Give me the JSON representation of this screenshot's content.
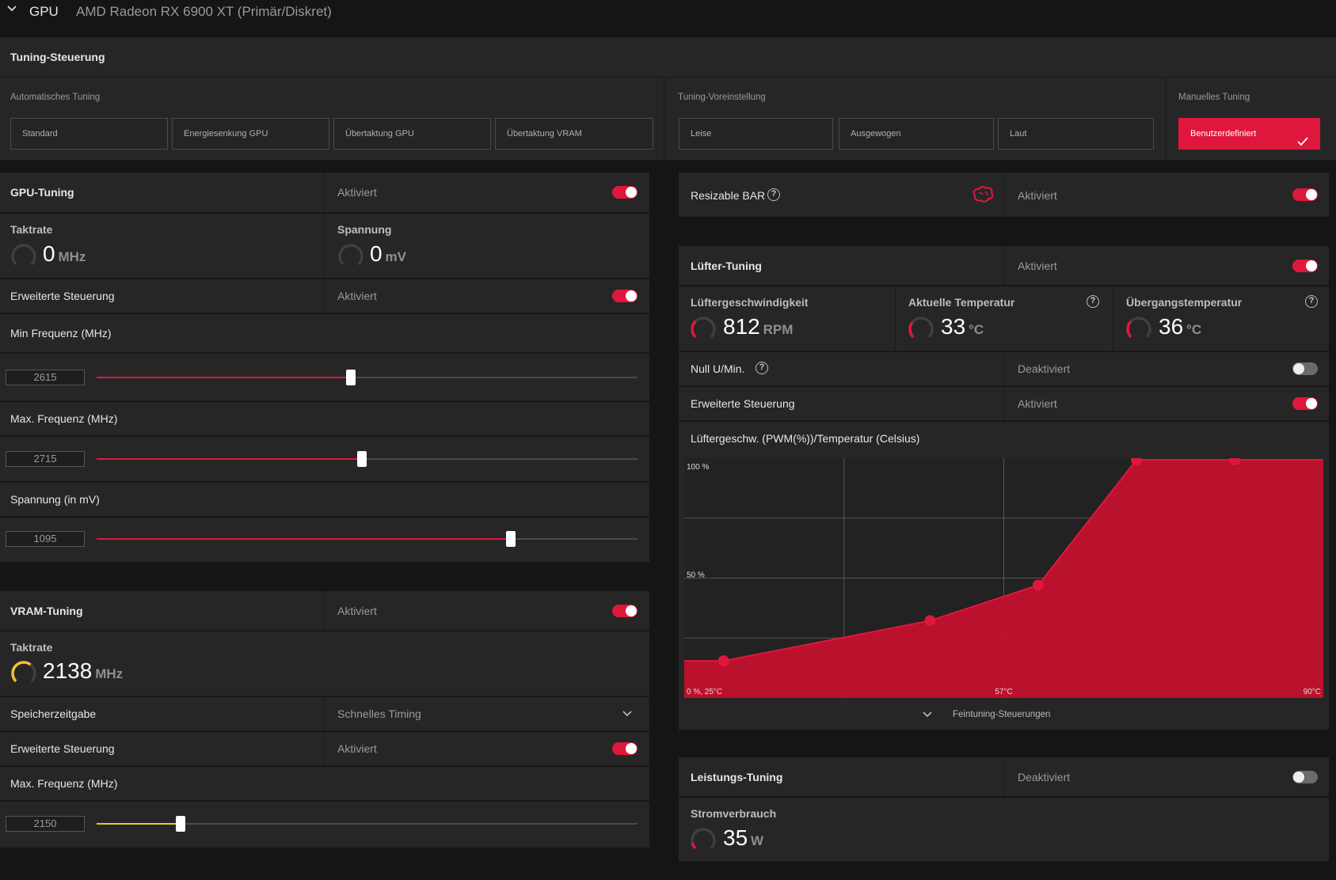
{
  "header": {
    "section": "GPU",
    "device": "AMD Radeon RX 6900 XT (Primär/Diskret)"
  },
  "tuning_control": {
    "title": "Tuning-Steuerung",
    "auto_label": "Automatisches Tuning",
    "auto_buttons": [
      "Standard",
      "Energiesenkung GPU",
      "Übertaktung GPU",
      "Übertaktung VRAM"
    ],
    "preset_label": "Tuning-Voreinstellung",
    "preset_buttons": [
      "Leise",
      "Ausgewogen",
      "Laut"
    ],
    "manual_label": "Manuelles Tuning",
    "manual_button": "Benutzerdefiniert"
  },
  "gpu_tuning": {
    "title": "GPU-Tuning",
    "status": "Aktiviert",
    "enabled": true,
    "clock_label": "Taktrate",
    "clock_value": "0",
    "clock_unit": "MHz",
    "voltage_label": "Spannung",
    "voltage_value": "0",
    "voltage_unit": "mV",
    "advanced_label": "Erweiterte Steuerung",
    "advanced_status": "Aktiviert",
    "min_freq_label": "Min Frequenz (MHz)",
    "min_freq_value": "2615",
    "min_freq_fraction": 0.47,
    "max_freq_label": "Max. Frequenz (MHz)",
    "max_freq_value": "2715",
    "max_freq_fraction": 0.49,
    "voltage_slider_label": "Spannung (in mV)",
    "voltage_slider_value": "1095",
    "voltage_slider_fraction": 0.766
  },
  "vram_tuning": {
    "title": "VRAM-Tuning",
    "status": "Aktiviert",
    "clock_label": "Taktrate",
    "clock_value": "2138",
    "clock_unit": "MHz",
    "timing_label": "Speicherzeitgabe",
    "timing_value": "Schnelles Timing",
    "advanced_label": "Erweiterte Steuerung",
    "advanced_status": "Aktiviert",
    "max_freq_label": "Max. Frequenz (MHz)",
    "max_freq_value": "2150",
    "max_freq_fraction": 0.155
  },
  "resizable_bar": {
    "label": "Resizable BAR",
    "status": "Aktiviert"
  },
  "fan_tuning": {
    "title": "Lüfter-Tuning",
    "status": "Aktiviert",
    "speed_label": "Lüftergeschwindigkeit",
    "speed_value": "812",
    "speed_unit": "RPM",
    "temp_label": "Aktuelle Temperatur",
    "temp_value": "33",
    "temp_unit": "°C",
    "junction_label": "Übergangstemperatur",
    "junction_value": "36",
    "junction_unit": "°C",
    "zero_rpm_label": "Null U/Min.",
    "zero_rpm_status": "Deaktiviert",
    "advanced_label": "Erweiterte Steuerung",
    "advanced_status": "Aktiviert",
    "curve_title": "Lüftergeschw. (PWM(%))/Temperatur (Celsius)",
    "fine_tuning": "Feintuning-Steuerungen"
  },
  "chart_data": {
    "type": "area",
    "title": "Lüftergeschw. (PWM(%))/Temperatur (Celsius)",
    "x_ticks": [
      "0 %, 25°C",
      "57°C",
      "90°C"
    ],
    "y_ticks": [
      "100 %",
      "50 %"
    ],
    "xlim": [
      25,
      90
    ],
    "ylim": [
      0,
      100
    ],
    "points": [
      {
        "x": 29,
        "y": 15
      },
      {
        "x": 50,
        "y": 32
      },
      {
        "x": 61,
        "y": 47
      },
      {
        "x": 71,
        "y": 100
      },
      {
        "x": 81,
        "y": 100
      }
    ],
    "fill_color": "#c8102e",
    "point_color": "#e0173c"
  },
  "power_tuning": {
    "title": "Leistungs-Tuning",
    "status": "Deaktiviert",
    "power_label": "Stromverbrauch",
    "power_value": "35",
    "power_unit": "W"
  },
  "colors": {
    "accent": "#e0173c",
    "vram_accent": "#f5c030",
    "panel": "#262626",
    "background": "#151515"
  }
}
